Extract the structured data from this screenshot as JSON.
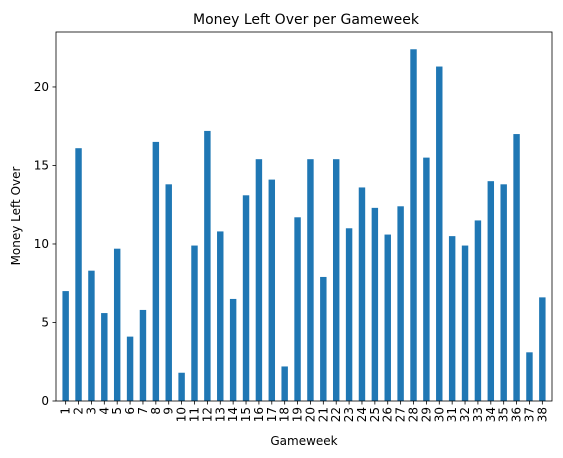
{
  "chart_data": {
    "type": "bar",
    "title": "Money Left Over per Gameweek",
    "xlabel": "Gameweek",
    "ylabel": "Money Left Over",
    "categories": [
      "1",
      "2",
      "3",
      "4",
      "5",
      "6",
      "7",
      "8",
      "9",
      "10",
      "11",
      "12",
      "13",
      "14",
      "15",
      "16",
      "17",
      "18",
      "19",
      "20",
      "21",
      "22",
      "23",
      "24",
      "25",
      "26",
      "27",
      "28",
      "29",
      "30",
      "31",
      "32",
      "33",
      "34",
      "35",
      "36",
      "37",
      "38"
    ],
    "values": [
      7.0,
      16.1,
      8.3,
      5.6,
      9.7,
      4.1,
      5.8,
      16.5,
      13.8,
      1.8,
      9.9,
      17.2,
      10.8,
      6.5,
      13.1,
      15.4,
      14.1,
      2.2,
      11.7,
      15.4,
      7.9,
      15.4,
      11.0,
      13.6,
      12.3,
      10.6,
      12.4,
      22.4,
      15.5,
      21.3,
      10.5,
      9.9,
      11.5,
      14.0,
      13.8,
      17.0,
      3.1,
      6.6
    ],
    "ylim": [
      0,
      23.5
    ],
    "yticks": [
      0,
      5,
      10,
      15,
      20
    ],
    "grid": false,
    "bar_color": "#1f77b4"
  }
}
